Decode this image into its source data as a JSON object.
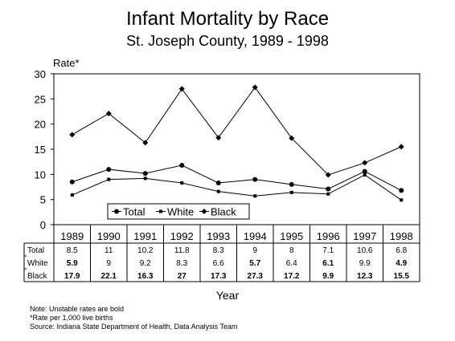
{
  "chart_data": {
    "type": "line",
    "title": "Infant Mortality by Race",
    "subtitle": "St. Joseph County, 1989 - 1998",
    "ylabel": "Rate*",
    "xlabel": "Year",
    "ylim": [
      0,
      30
    ],
    "yticks": [
      0,
      5,
      10,
      15,
      20,
      25,
      30
    ],
    "grid": false,
    "legend_position": "bottom-center",
    "categories": [
      "1989",
      "1990",
      "1991",
      "1992",
      "1993",
      "1994",
      "1995",
      "1996",
      "1997",
      "1998"
    ],
    "series": [
      {
        "name": "Total",
        "marker": "circle",
        "values": [
          8.5,
          11,
          10.2,
          11.8,
          8.3,
          9,
          8,
          7.1,
          10.6,
          6.8
        ],
        "labels": [
          "8.5",
          "11",
          "10.2",
          "11.8",
          "8.3",
          "9",
          "8",
          "7.1",
          "10.6",
          "6.8"
        ],
        "bold": [
          false,
          false,
          false,
          false,
          false,
          false,
          false,
          false,
          false,
          false
        ]
      },
      {
        "name": "White",
        "marker": "square",
        "values": [
          5.9,
          9,
          9.2,
          8.3,
          6.6,
          5.7,
          6.4,
          6.1,
          9.9,
          4.9
        ],
        "labels": [
          "5.9",
          "9",
          "9.2",
          "8.3",
          "6.6",
          "5.7",
          "6.4",
          "6.1",
          "9.9",
          "4.9"
        ],
        "bold": [
          true,
          false,
          false,
          false,
          false,
          true,
          false,
          true,
          false,
          true
        ]
      },
      {
        "name": "Black",
        "marker": "diamond",
        "values": [
          17.9,
          22.1,
          16.3,
          27,
          17.3,
          27.3,
          17.2,
          9.9,
          12.3,
          15.5
        ],
        "labels": [
          "17.9",
          "22.1",
          "16.3",
          "27",
          "17.3",
          "27.3",
          "17.2",
          "9.9",
          "12.3",
          "15.5"
        ],
        "bold": [
          true,
          true,
          true,
          true,
          true,
          true,
          true,
          true,
          true,
          true
        ]
      }
    ]
  },
  "notes": [
    "Note:  Unstable rates are bold",
    "*Rate per 1,000 live births",
    "Source:  Indiana State Department of Health, Data Analysis Team"
  ]
}
